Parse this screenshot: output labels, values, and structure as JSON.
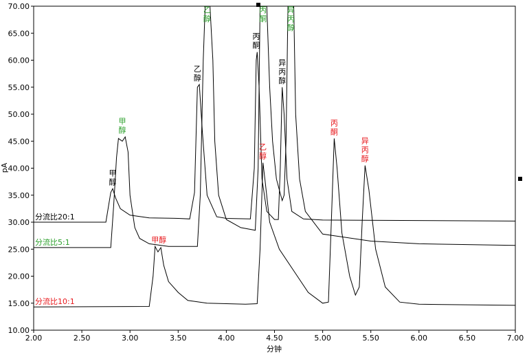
{
  "chart_data": {
    "type": "line",
    "title": "",
    "xlabel": "分钟",
    "ylabel": "pA",
    "xlim": [
      2.0,
      7.0
    ],
    "ylim": [
      10.0,
      70.0
    ],
    "xticks": [
      "2.00",
      "2.50",
      "3.00",
      "3.50",
      "4.00",
      "4.50",
      "5.00",
      "5.50",
      "6.00",
      "6.50",
      "7.00"
    ],
    "yticks": [
      "10.00",
      "15.00",
      "20.00",
      "25.00",
      "30.00",
      "35.00",
      "40.00",
      "45.00",
      "50.00",
      "55.00",
      "60.00",
      "65.00",
      "70.00"
    ],
    "grid": false,
    "series": [
      {
        "name": "分流比20:1",
        "color": "#000000",
        "points": [
          [
            2.0,
            30.0
          ],
          [
            2.75,
            30.0
          ],
          [
            2.8,
            35.5
          ],
          [
            2.82,
            36.2
          ],
          [
            2.85,
            34.5
          ],
          [
            2.9,
            32.5
          ],
          [
            3.0,
            31.3
          ],
          [
            3.2,
            30.8
          ],
          [
            3.5,
            30.7
          ],
          [
            3.62,
            30.6
          ],
          [
            3.67,
            35.5
          ],
          [
            3.7,
            55.0
          ],
          [
            3.72,
            55.5
          ],
          [
            3.75,
            47.0
          ],
          [
            3.8,
            35.0
          ],
          [
            3.9,
            31.0
          ],
          [
            4.0,
            30.7
          ],
          [
            4.25,
            30.6
          ],
          [
            4.29,
            40.0
          ],
          [
            4.31,
            60.0
          ],
          [
            4.32,
            61.5
          ],
          [
            4.34,
            55.0
          ],
          [
            4.37,
            38.0
          ],
          [
            4.42,
            32.0
          ],
          [
            4.5,
            30.5
          ],
          [
            4.54,
            30.5
          ],
          [
            4.56,
            40.0
          ],
          [
            4.58,
            55.0
          ],
          [
            4.6,
            50.0
          ],
          [
            4.63,
            38.0
          ],
          [
            4.68,
            32.0
          ],
          [
            4.8,
            30.6
          ],
          [
            5.0,
            30.4
          ],
          [
            6.0,
            30.3
          ],
          [
            7.0,
            30.2
          ]
        ]
      },
      {
        "name": "分流比5:1",
        "color": "#000000",
        "points": [
          [
            2.0,
            25.3
          ],
          [
            2.8,
            25.3
          ],
          [
            2.83,
            33.0
          ],
          [
            2.86,
            42.0
          ],
          [
            2.88,
            45.5
          ],
          [
            2.92,
            45.0
          ],
          [
            2.95,
            45.8
          ],
          [
            2.98,
            43.0
          ],
          [
            3.0,
            35.0
          ],
          [
            3.05,
            29.0
          ],
          [
            3.1,
            27.0
          ],
          [
            3.2,
            26.0
          ],
          [
            3.4,
            25.5
          ],
          [
            3.7,
            25.5
          ],
          [
            3.73,
            35.0
          ],
          [
            3.76,
            60.0
          ],
          [
            3.78,
            70.0
          ],
          [
            3.83,
            70.0
          ],
          [
            3.86,
            60.0
          ],
          [
            3.88,
            45.0
          ],
          [
            3.92,
            35.0
          ],
          [
            4.0,
            30.5
          ],
          [
            4.15,
            29.0
          ],
          [
            4.3,
            28.5
          ],
          [
            4.33,
            40.0
          ],
          [
            4.35,
            70.0
          ],
          [
            4.42,
            70.0
          ],
          [
            4.45,
            55.0
          ],
          [
            4.48,
            45.0
          ],
          [
            4.52,
            38.0
          ],
          [
            4.58,
            34.0
          ],
          [
            4.6,
            35.0
          ],
          [
            4.62,
            45.0
          ],
          [
            4.64,
            70.0
          ],
          [
            4.7,
            70.0
          ],
          [
            4.72,
            50.0
          ],
          [
            4.76,
            38.0
          ],
          [
            4.82,
            32.0
          ],
          [
            5.0,
            27.8
          ],
          [
            5.5,
            26.5
          ],
          [
            6.0,
            26.0
          ],
          [
            7.0,
            25.7
          ]
        ]
      },
      {
        "name": "分流比10:1",
        "color": "#000000",
        "points": [
          [
            2.0,
            14.3
          ],
          [
            3.2,
            14.4
          ],
          [
            3.24,
            20.0
          ],
          [
            3.26,
            25.5
          ],
          [
            3.29,
            24.5
          ],
          [
            3.32,
            25.3
          ],
          [
            3.35,
            22.0
          ],
          [
            3.4,
            19.0
          ],
          [
            3.5,
            17.0
          ],
          [
            3.6,
            15.5
          ],
          [
            3.8,
            15.0
          ],
          [
            4.2,
            14.8
          ],
          [
            4.32,
            14.9
          ],
          [
            4.35,
            25.0
          ],
          [
            4.38,
            41.0
          ],
          [
            4.4,
            38.0
          ],
          [
            4.45,
            30.0
          ],
          [
            4.55,
            25.0
          ],
          [
            4.7,
            21.0
          ],
          [
            4.85,
            17.0
          ],
          [
            5.0,
            15.0
          ],
          [
            5.06,
            15.2
          ],
          [
            5.09,
            30.0
          ],
          [
            5.12,
            45.5
          ],
          [
            5.15,
            40.0
          ],
          [
            5.2,
            28.0
          ],
          [
            5.28,
            20.0
          ],
          [
            5.34,
            16.5
          ],
          [
            5.38,
            18.0
          ],
          [
            5.41,
            30.0
          ],
          [
            5.44,
            40.5
          ],
          [
            5.48,
            36.0
          ],
          [
            5.55,
            25.0
          ],
          [
            5.65,
            18.0
          ],
          [
            5.8,
            15.2
          ],
          [
            6.0,
            14.8
          ],
          [
            7.0,
            14.6
          ]
        ]
      }
    ],
    "series_labels": [
      {
        "text": "分流比20:1",
        "color": "#000000",
        "x": 2.0,
        "y": 30.0
      },
      {
        "text": "分流比5:1",
        "color": "#2ca02c",
        "x": 2.0,
        "y": 25.3
      },
      {
        "text": "分流比10:1",
        "color": "#e8181c",
        "x": 2.0,
        "y": 14.3
      }
    ],
    "annotations": [
      {
        "lines": [
          "甲",
          "醇"
        ],
        "color": "#000000",
        "x": 2.82,
        "y": 36.2
      },
      {
        "lines": [
          "乙",
          "醇"
        ],
        "color": "#000000",
        "x": 3.7,
        "y": 55.5
      },
      {
        "lines": [
          "丙",
          "酮"
        ],
        "color": "#000000",
        "x": 4.31,
        "y": 61.5
      },
      {
        "lines": [
          "异",
          "丙",
          "醇"
        ],
        "color": "#000000",
        "x": 4.58,
        "y": 55.0
      },
      {
        "lines": [
          "甲",
          "醇"
        ],
        "color": "#2ca02c",
        "x": 2.92,
        "y": 45.8
      },
      {
        "lines": [
          "乙",
          "醇"
        ],
        "color": "#2ca02c",
        "x": 3.8,
        "y": 70.0
      },
      {
        "lines": [
          "丙",
          "酮"
        ],
        "color": "#2ca02c",
        "x": 4.38,
        "y": 70.0
      },
      {
        "lines": [
          "异",
          "丙",
          "醇"
        ],
        "color": "#2ca02c",
        "x": 4.67,
        "y": 70.0
      },
      {
        "lines": [
          "甲醇"
        ],
        "color": "#e8181c",
        "x": 3.3,
        "y": 25.5
      },
      {
        "lines": [
          "乙",
          "醇"
        ],
        "color": "#e8181c",
        "x": 4.38,
        "y": 41.0
      },
      {
        "lines": [
          "丙",
          "酮"
        ],
        "color": "#e8181c",
        "x": 5.12,
        "y": 45.5
      },
      {
        "lines": [
          "异",
          "丙",
          "醇"
        ],
        "color": "#e8181c",
        "x": 5.44,
        "y": 40.5
      }
    ]
  }
}
